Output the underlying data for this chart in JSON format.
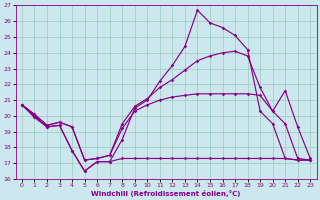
{
  "color": "#880088",
  "bg_color": "#cce8ee",
  "grid_color": "#99ccbb",
  "xlabel": "Windchill (Refroidissement éolien,°C)",
  "ylim": [
    16,
    27
  ],
  "xlim": [
    -0.5,
    23.5
  ],
  "yticks": [
    16,
    17,
    18,
    19,
    20,
    21,
    22,
    23,
    24,
    25,
    26,
    27
  ],
  "xticks": [
    0,
    1,
    2,
    3,
    4,
    5,
    6,
    7,
    8,
    9,
    10,
    11,
    12,
    13,
    14,
    15,
    16,
    17,
    18,
    19,
    20,
    21,
    22,
    23
  ],
  "curve1": [
    20.7,
    20.0,
    19.3,
    19.4,
    17.8,
    16.5,
    17.1,
    17.1,
    18.5,
    20.5,
    21.0,
    22.2,
    23.2,
    24.4,
    26.7,
    25.9,
    25.6,
    25.1,
    24.2,
    20.3,
    19.5,
    17.3,
    17.2,
    17.2
  ],
  "curve2": [
    20.7,
    20.1,
    19.4,
    19.6,
    19.3,
    17.2,
    17.3,
    17.5,
    19.5,
    20.6,
    21.1,
    21.8,
    22.3,
    22.9,
    23.5,
    23.8,
    24.0,
    24.1,
    23.8,
    21.8,
    20.3,
    21.6,
    19.3,
    17.3
  ],
  "curve3": [
    20.7,
    20.1,
    19.4,
    19.6,
    19.3,
    17.2,
    17.3,
    17.5,
    19.2,
    20.3,
    20.7,
    21.0,
    21.2,
    21.3,
    21.4,
    21.4,
    21.4,
    21.4,
    21.4,
    21.3,
    20.3,
    19.5,
    17.3,
    17.2
  ],
  "curve4": [
    20.7,
    19.9,
    19.3,
    19.4,
    17.8,
    16.5,
    17.1,
    17.1,
    17.3,
    17.3,
    17.3,
    17.3,
    17.3,
    17.3,
    17.3,
    17.3,
    17.3,
    17.3,
    17.3,
    17.3,
    17.3,
    17.3,
    17.2,
    17.2
  ]
}
